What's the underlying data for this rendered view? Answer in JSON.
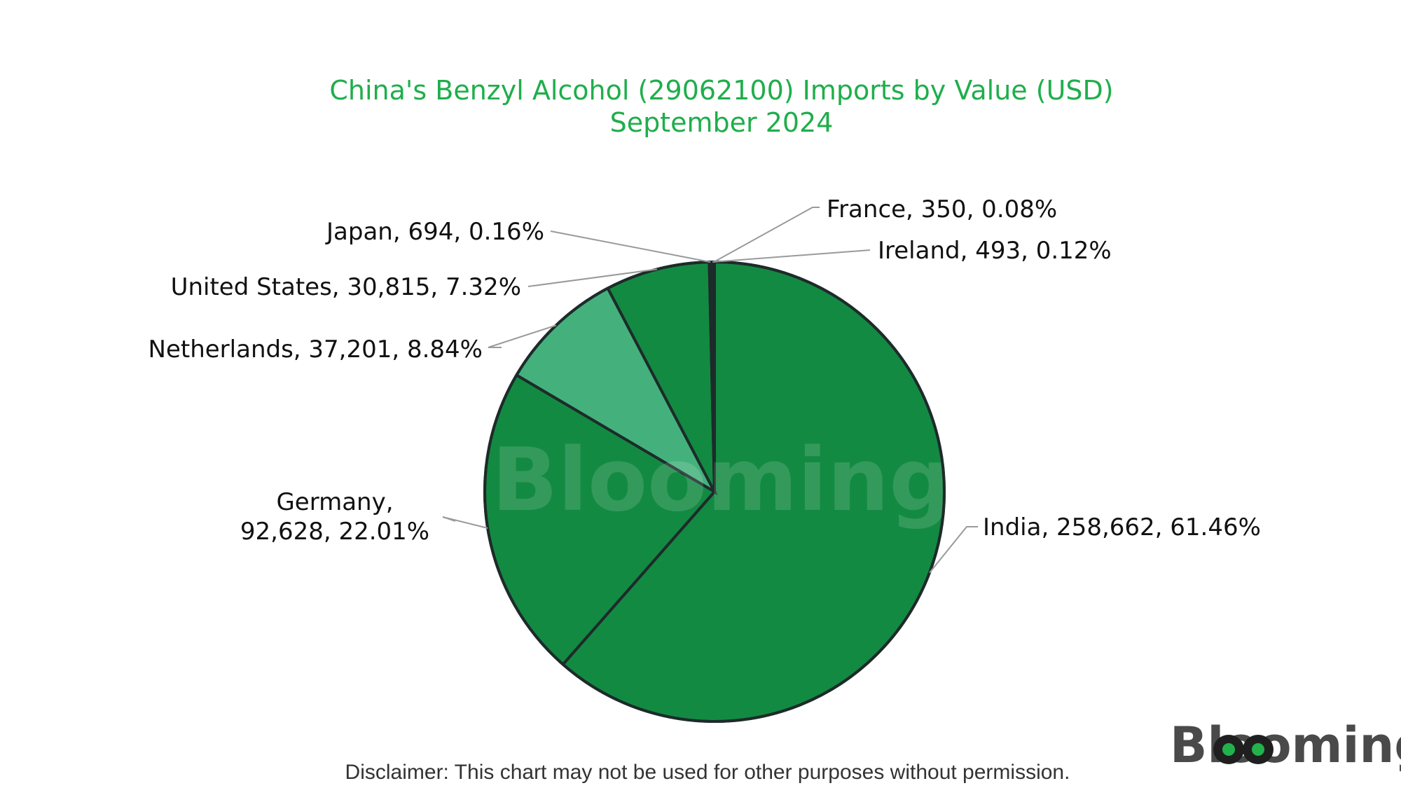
{
  "colors": {
    "title": "#1fae4b",
    "slice_dark": "#138a42",
    "slice_light": "#44b17c",
    "slice_tiny": "#24314a",
    "outline": "#1d2b2a",
    "leader": "#9a9a9a",
    "logo_text": "#4a4a4a",
    "logo_accent": "#22b24c"
  },
  "logo": {
    "text": "Blooming",
    "icon": "eye-logo-icon"
  },
  "watermark": {
    "text": "Blooming"
  },
  "disclaimer": "Disclaimer: This chart may not be used for other purposes without permission.",
  "chart_data": {
    "type": "pie",
    "title": "China's Benzyl Alcohol (29062100) Imports by Value (USD)",
    "subtitle": "September 2024",
    "start": "top",
    "direction": "clockwise",
    "slices": [
      {
        "label": "India, 258,662, 61.46%",
        "name": "India",
        "value": 258662,
        "percent": 61.46,
        "color": "#138a42"
      },
      {
        "label": "Germany, 92,628, 22.01%",
        "name": "Germany",
        "value": 92628,
        "percent": 22.01,
        "color": "#138a42"
      },
      {
        "label": "Netherlands, 37,201, 8.84%",
        "name": "Netherlands",
        "value": 37201,
        "percent": 8.84,
        "color": "#44b17c"
      },
      {
        "label": "United States, 30,815, 7.32%",
        "name": "United States",
        "value": 30815,
        "percent": 7.32,
        "color": "#138a42"
      },
      {
        "label": "Japan, 694, 0.16%",
        "name": "Japan",
        "value": 694,
        "percent": 0.16,
        "color": "#24314a"
      },
      {
        "label": "Ireland, 493, 0.12%",
        "name": "Ireland",
        "value": 493,
        "percent": 0.12,
        "color": "#24314a"
      },
      {
        "label": "France, 350, 0.08%",
        "name": "France",
        "value": 350,
        "percent": 0.08,
        "color": "#24314a"
      }
    ]
  }
}
